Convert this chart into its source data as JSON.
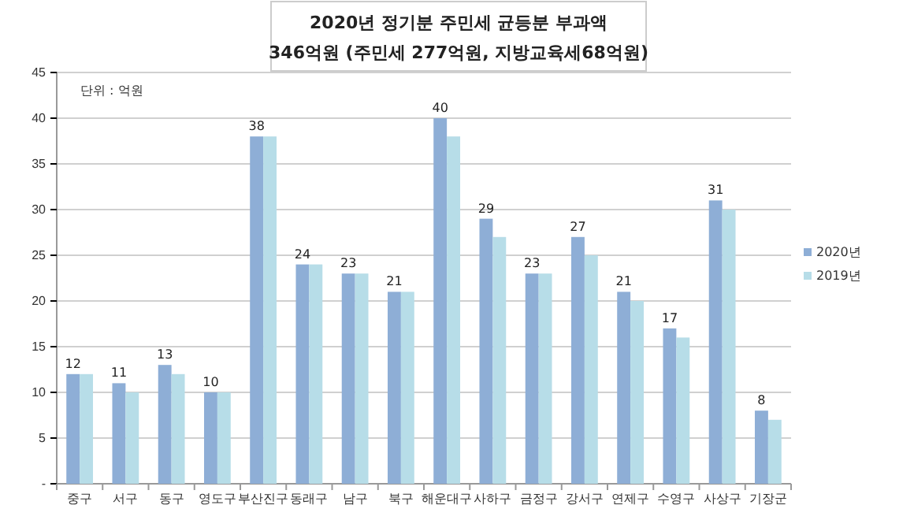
{
  "chart_data": {
    "type": "bar",
    "title": "2020년 정기분 주민세 균등분 부과액",
    "subtitle": "346억원 (주민세  277억원, 지방교육세68억원)",
    "annotations": [
      "단위 : 억원"
    ],
    "categories": [
      "중구",
      "서구",
      "동구",
      "영도구",
      "부산진구",
      "동래구",
      "남구",
      "북구",
      "해운대구",
      "사하구",
      "금정구",
      "강서구",
      "연제구",
      "수영구",
      "사상구",
      "기장군"
    ],
    "series": [
      {
        "name": "2020년",
        "color": "#8eaed6",
        "values": [
          12,
          11,
          13,
          10,
          38,
          24,
          23,
          21,
          40,
          29,
          23,
          27,
          21,
          17,
          31,
          8
        ],
        "value_labels": [
          "12",
          "11",
          "13",
          "10",
          "38",
          "24",
          "23",
          "21",
          "40",
          "29",
          "23",
          "27",
          "21",
          "17",
          "31",
          "8"
        ]
      },
      {
        "name": "2019년",
        "color": "#b7dde8",
        "values": [
          12,
          10,
          12,
          10,
          38,
          24,
          23,
          21,
          38,
          27,
          23,
          25,
          20,
          16,
          30,
          7
        ]
      }
    ],
    "ylim": [
      0,
      45
    ],
    "yticks": [
      {
        "value": 0,
        "label": "-"
      },
      5,
      10,
      15,
      20,
      25,
      30,
      35,
      40,
      45
    ],
    "grid": "y",
    "legend": "right"
  }
}
